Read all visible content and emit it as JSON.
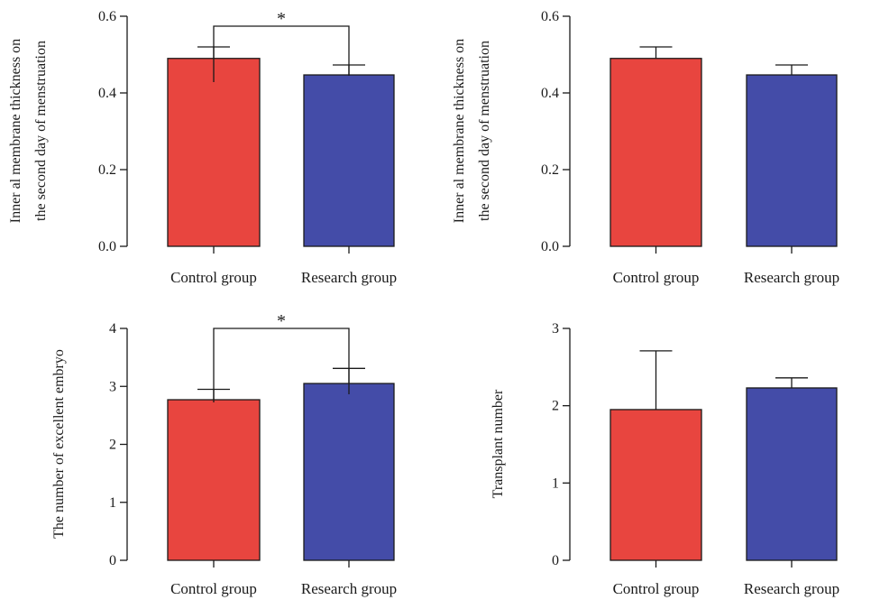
{
  "colors": {
    "control": "#e8453f",
    "research": "#444ca8",
    "axis": "#1a1a1a"
  },
  "chart_data": [
    {
      "type": "bar",
      "categories": [
        "Control group",
        "Research group"
      ],
      "values": [
        0.49,
        0.447
      ],
      "errors": [
        0.03,
        0.026
      ],
      "yticks": [
        "0.0",
        "0.2",
        "0.4",
        "0.6"
      ],
      "ylim": [
        0,
        0.6
      ],
      "ylabel_lines": [
        "Inner al membrane thickness on",
        "the second day of menstruation"
      ],
      "significance": "*"
    },
    {
      "type": "bar",
      "categories": [
        "Control group",
        "Research group"
      ],
      "values": [
        0.49,
        0.447
      ],
      "errors": [
        0.03,
        0.026
      ],
      "yticks": [
        "0.0",
        "0.2",
        "0.4",
        "0.6"
      ],
      "ylim": [
        0,
        0.6
      ],
      "ylabel_lines": [
        "Inner al membrane thickness on",
        "the second day of menstruation"
      ],
      "significance": ""
    },
    {
      "type": "bar",
      "categories": [
        "Control group",
        "Research group"
      ],
      "values": [
        2.77,
        3.05
      ],
      "errors": [
        0.18,
        0.26
      ],
      "yticks": [
        "0",
        "1",
        "2",
        "3",
        "4"
      ],
      "ylim": [
        0,
        4
      ],
      "ylabel_lines": [
        "The number of excellent embryo"
      ],
      "significance": "*"
    },
    {
      "type": "bar",
      "categories": [
        "Control group",
        "Research group"
      ],
      "values": [
        1.95,
        2.23
      ],
      "errors": [
        0.76,
        0.13
      ],
      "yticks": [
        "0",
        "1",
        "2",
        "3"
      ],
      "ylim": [
        0,
        3
      ],
      "ylabel_lines": [
        "Transplant number"
      ],
      "significance": ""
    }
  ]
}
